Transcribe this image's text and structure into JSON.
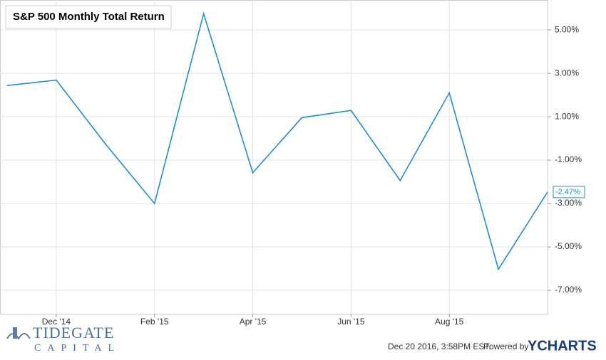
{
  "chart_data": {
    "type": "line",
    "title": "S&P 500 Monthly Total Return",
    "categories": [
      null,
      "Dec '14",
      null,
      "Feb '15",
      null,
      "Apr '15",
      null,
      "Jun '15",
      null,
      "Aug '15",
      null,
      null
    ],
    "series": [
      {
        "name": "S&P 500 Monthly Total Return",
        "color": "#1f8dd6",
        "values": [
          2.44,
          2.69,
          -0.25,
          -3.0,
          5.75,
          -1.58,
          0.96,
          1.29,
          -1.94,
          2.1,
          -6.03,
          -2.47
        ],
        "value_labels": [
          null,
          null,
          null,
          null,
          null,
          null,
          null,
          null,
          null,
          null,
          null,
          "-2.47%"
        ]
      }
    ],
    "ylim": [
      -8.08,
      6.38
    ],
    "yticks": [
      {
        "value": 5,
        "label": "5.00%"
      },
      {
        "value": 3,
        "label": "3.00%"
      },
      {
        "value": 1,
        "label": "1.00%"
      },
      {
        "value": -1,
        "label": "-1.00%"
      },
      {
        "value": -3,
        "label": "-3.00%"
      },
      {
        "value": -5,
        "label": "-5.00%"
      },
      {
        "value": -7,
        "label": "-7.00%"
      }
    ],
    "grid": true
  },
  "branding": {
    "logo_top": "TIDEGATE",
    "logo_bottom": "CAPITAL",
    "timestamp": "Dec 20 2016, 3:58PM EST.",
    "powered": "Powered by",
    "brand": "YCHARTS"
  }
}
